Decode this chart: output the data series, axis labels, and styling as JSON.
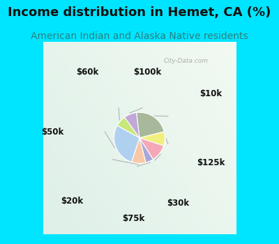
{
  "title": "Income distribution in Hemet, CA (%)",
  "subtitle": "American Indian and Alaska Native residents",
  "background_color": "#00e5ff",
  "watermark": "City-Data.com",
  "slices": [
    {
      "label": "$10k",
      "value": 23,
      "color": "#a8b89a"
    },
    {
      "label": "$125k",
      "value": 9,
      "color": "#f0f080"
    },
    {
      "label": "$30k",
      "value": 11,
      "color": "#f4a8b8"
    },
    {
      "label": "$75k",
      "value": 5,
      "color": "#a8a8d8"
    },
    {
      "label": "$20k",
      "value": 9,
      "color": "#f8c8a8"
    },
    {
      "label": "$50k",
      "value": 28,
      "color": "#b0d0f0"
    },
    {
      "label": "$60k",
      "value": 7,
      "color": "#c8e878"
    },
    {
      "label": "$100k",
      "value": 8,
      "color": "#c0a8d8"
    }
  ],
  "label_fontsize": 8.5,
  "title_fontsize": 13,
  "subtitle_fontsize": 10,
  "title_color": "#111111",
  "subtitle_color": "#2a8080"
}
